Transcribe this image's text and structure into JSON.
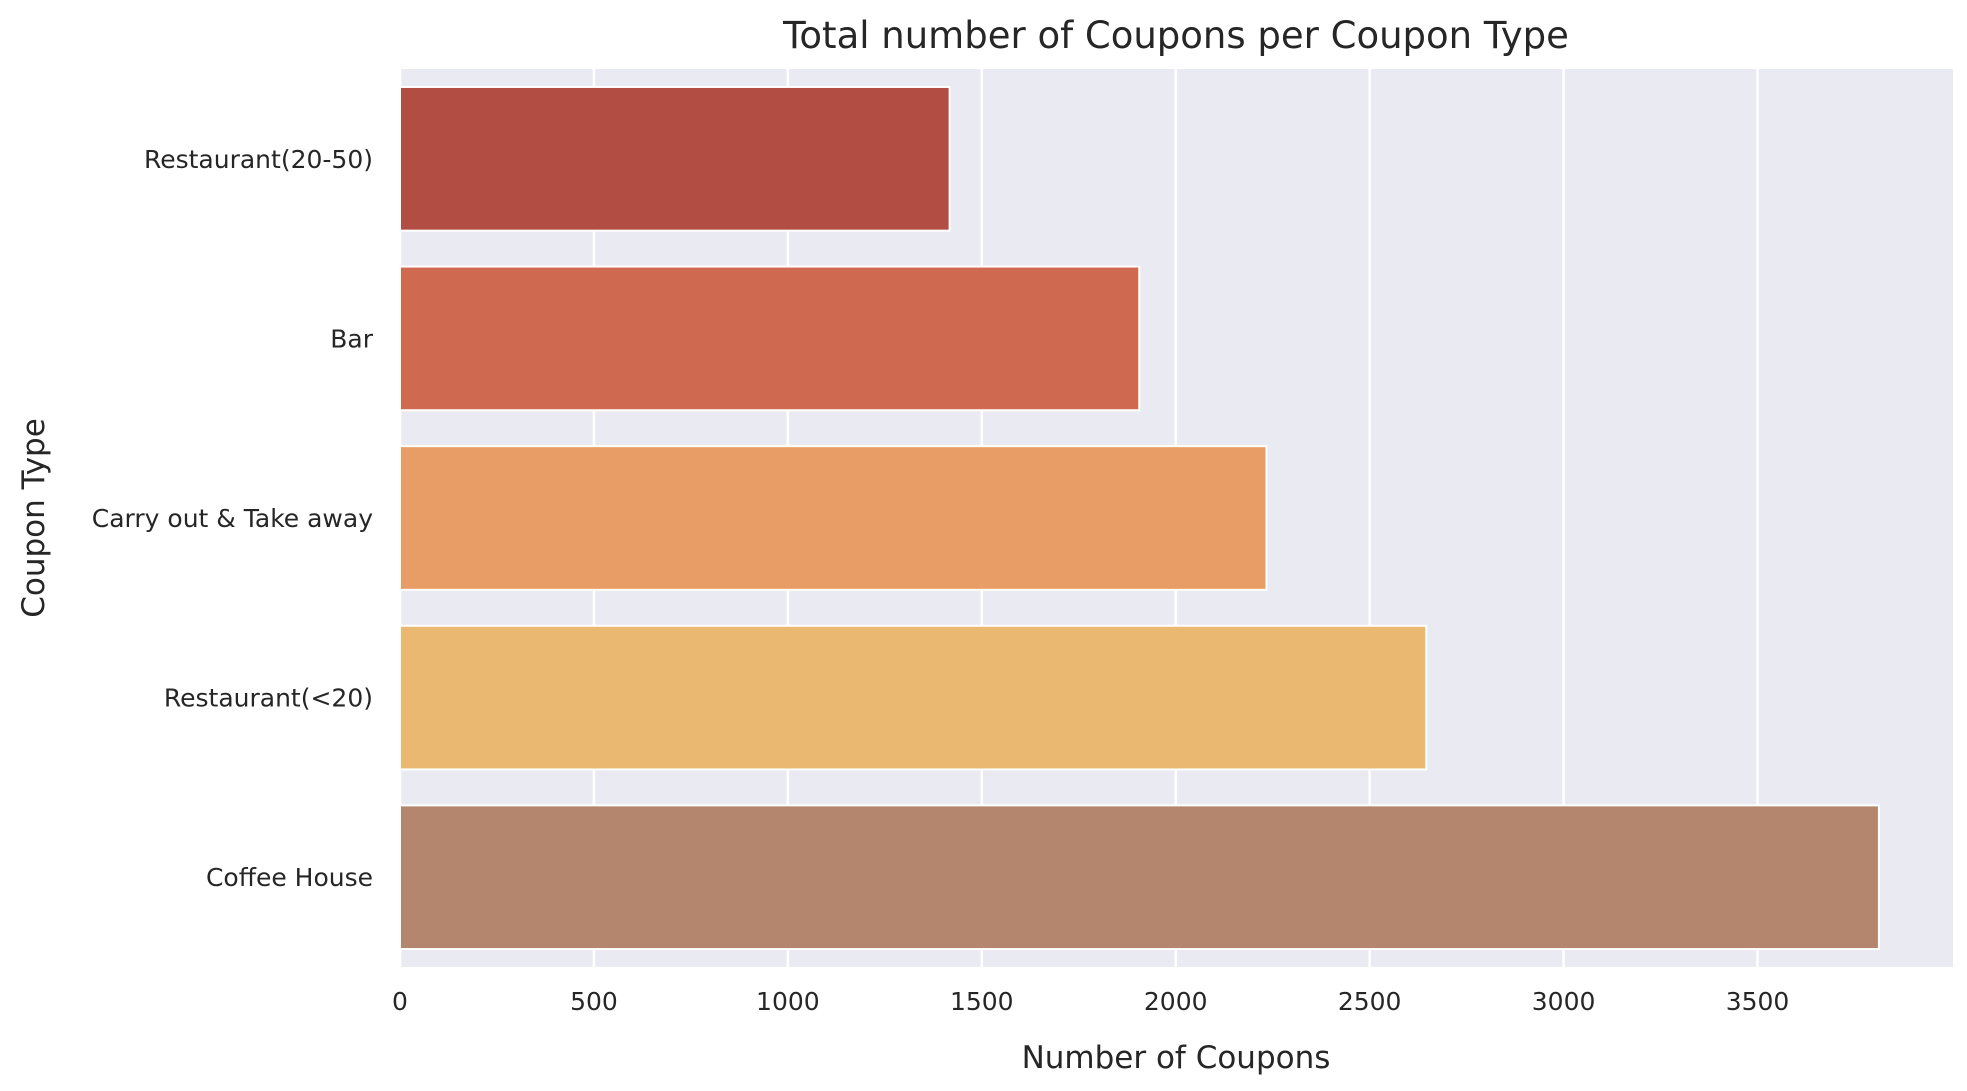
{
  "chart_data": {
    "type": "bar",
    "orientation": "horizontal",
    "title": "Total number of Coupons per Coupon Type",
    "xlabel": "Number of Coupons",
    "ylabel": "Coupon Type",
    "categories": [
      "Restaurant(20-50)",
      "Bar",
      "Carry out & Take away",
      "Restaurant(<20)",
      "Coffee House"
    ],
    "values": [
      1417,
      1906,
      2234,
      2646,
      3813
    ],
    "colors": [
      "#b14d43",
      "#cf6a51",
      "#e89d67",
      "#ebb871",
      "#b3866d"
    ],
    "xlim": [
      0,
      4004
    ],
    "xticks": [
      0,
      500,
      1000,
      1500,
      2000,
      2500,
      3000,
      3500
    ],
    "grid": true,
    "background": "#eaeaf2"
  }
}
